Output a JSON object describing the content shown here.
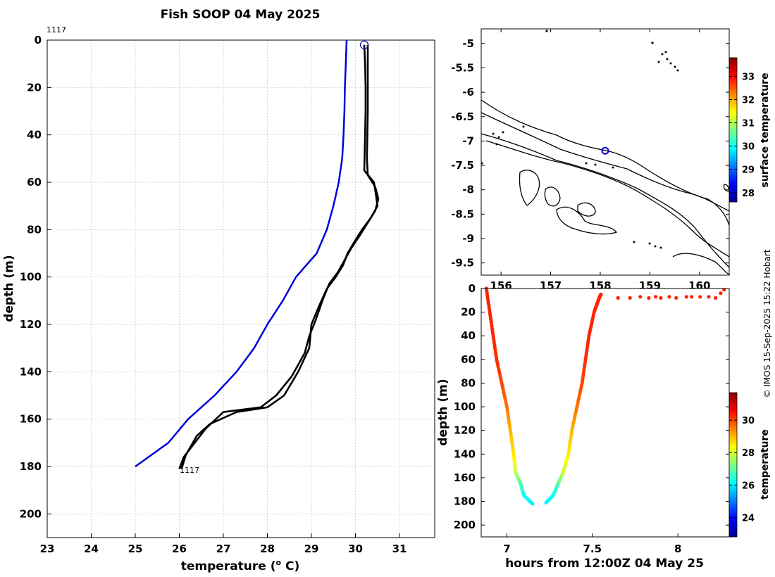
{
  "chart_data": [
    {
      "id": "profile",
      "type": "line",
      "title": "Fish SOOP 04 May 2025",
      "xlabel": "temperature (",
      "xlabel_sup": "o",
      "xlabel_tail": " C)",
      "ylabel": "depth (m)",
      "xlim": [
        23,
        31.8
      ],
      "ylim": [
        0,
        210
      ],
      "xticks": [
        23,
        24,
        25,
        26,
        27,
        28,
        29,
        30,
        31
      ],
      "yticks": [
        0,
        20,
        40,
        60,
        80,
        100,
        120,
        140,
        160,
        180,
        200
      ],
      "grid": true,
      "annotations": {
        "top_id": "1117",
        "bottom_id": "1117"
      },
      "marker": {
        "temperature": 30.2,
        "depth": 2,
        "color": "#0000cc"
      },
      "series": [
        {
          "name": "climatology",
          "color": "#0000dd",
          "points": [
            [
              29.8,
              0
            ],
            [
              29.78,
              10
            ],
            [
              29.76,
              20
            ],
            [
              29.75,
              30
            ],
            [
              29.73,
              40
            ],
            [
              29.7,
              50
            ],
            [
              29.62,
              60
            ],
            [
              29.5,
              70
            ],
            [
              29.35,
              80
            ],
            [
              29.12,
              90
            ],
            [
              28.65,
              100
            ],
            [
              28.35,
              110
            ],
            [
              28.0,
              120
            ],
            [
              27.7,
              130
            ],
            [
              27.3,
              140
            ],
            [
              26.8,
              150
            ],
            [
              26.2,
              160
            ],
            [
              25.75,
              170
            ],
            [
              25.0,
              180
            ]
          ]
        },
        {
          "name": "down cast",
          "color": "#000000",
          "points": [
            [
              30.2,
              2
            ],
            [
              30.22,
              10
            ],
            [
              30.23,
              20
            ],
            [
              30.23,
              30
            ],
            [
              30.22,
              40
            ],
            [
              30.2,
              55
            ],
            [
              30.42,
              60
            ],
            [
              30.47,
              66
            ],
            [
              30.5,
              70
            ],
            [
              30.35,
              75
            ],
            [
              30.15,
              80
            ],
            [
              29.98,
              85
            ],
            [
              29.82,
              90
            ],
            [
              29.72,
              95
            ],
            [
              29.55,
              100
            ],
            [
              29.35,
              105
            ],
            [
              29.18,
              112
            ],
            [
              29.0,
              120
            ],
            [
              28.95,
              130
            ],
            [
              28.7,
              140
            ],
            [
              28.38,
              150
            ],
            [
              28.0,
              155
            ],
            [
              27.3,
              157
            ],
            [
              26.7,
              162
            ],
            [
              26.4,
              167
            ],
            [
              26.15,
              175
            ],
            [
              26.05,
              181
            ]
          ]
        },
        {
          "name": "up cast",
          "color": "#000000",
          "points": [
            [
              30.28,
              2
            ],
            [
              30.28,
              10
            ],
            [
              30.28,
              20
            ],
            [
              30.28,
              30
            ],
            [
              30.27,
              40
            ],
            [
              30.26,
              50
            ],
            [
              30.28,
              57
            ],
            [
              30.45,
              62
            ],
            [
              30.52,
              67
            ],
            [
              30.45,
              72
            ],
            [
              30.25,
              78
            ],
            [
              30.08,
              83
            ],
            [
              29.9,
              88
            ],
            [
              29.75,
              93
            ],
            [
              29.6,
              98
            ],
            [
              29.4,
              103
            ],
            [
              29.25,
              110
            ],
            [
              29.1,
              118
            ],
            [
              28.95,
              125
            ],
            [
              28.85,
              132
            ],
            [
              28.55,
              142
            ],
            [
              28.2,
              150
            ],
            [
              27.85,
              155
            ],
            [
              27.0,
              157
            ],
            [
              26.6,
              164
            ],
            [
              26.35,
              170
            ],
            [
              26.1,
              176
            ],
            [
              26.0,
              181
            ]
          ]
        }
      ]
    },
    {
      "id": "map",
      "type": "scatter",
      "xlim": [
        155.6,
        160.6
      ],
      "ylim": [
        -9.75,
        -4.7
      ],
      "xticks": [
        156,
        157,
        158,
        159,
        160
      ],
      "yticks": [
        -5,
        -5.5,
        -6,
        -6.5,
        -7,
        -7.5,
        -8,
        -8.5,
        -9,
        -9.5
      ],
      "xtick_labels": [
        "156",
        "157",
        "158",
        "159",
        "160"
      ],
      "ytick_labels": [
        "-5",
        "-5.5",
        "-6",
        "-6.5",
        "-7",
        "-7.5",
        "-8",
        "-8.5",
        "-9",
        "-9.5"
      ],
      "marker": {
        "lon": 158.1,
        "lat": -7.2,
        "color": "#0000cc"
      },
      "colorbar": {
        "label": "surface temperature",
        "min": 27.6,
        "max": 33.8,
        "ticks": [
          28,
          29,
          30,
          31,
          32,
          33
        ]
      }
    },
    {
      "id": "track",
      "type": "scatter",
      "xlabel": "hours from 12:00Z 04 May 25",
      "ylabel": "depth (m)",
      "xlim": [
        6.85,
        8.3
      ],
      "ylim": [
        0,
        210
      ],
      "xticks": [
        7,
        7.5,
        8
      ],
      "xtick_labels": [
        "7",
        "7.5",
        "8"
      ],
      "yticks": [
        0,
        20,
        40,
        60,
        80,
        100,
        120,
        140,
        160,
        180,
        200
      ],
      "colorbar": {
        "label": "temperature",
        "min": 22.8,
        "max": 31.7,
        "ticks": [
          24,
          26,
          28,
          30
        ]
      },
      "descent": [
        [
          6.88,
          0,
          30.3
        ],
        [
          6.9,
          20,
          30.3
        ],
        [
          6.92,
          40,
          30.25
        ],
        [
          6.94,
          60,
          30.2
        ],
        [
          6.97,
          80,
          30.0
        ],
        [
          7.0,
          100,
          29.6
        ],
        [
          7.02,
          120,
          29.0
        ],
        [
          7.04,
          140,
          28.6
        ],
        [
          7.05,
          155,
          27.9
        ],
        [
          7.08,
          165,
          26.8
        ],
        [
          7.1,
          175,
          26.3
        ],
        [
          7.15,
          182,
          26.0
        ]
      ],
      "ascent": [
        [
          7.23,
          181,
          26.0
        ],
        [
          7.27,
          175,
          26.2
        ],
        [
          7.3,
          165,
          26.8
        ],
        [
          7.33,
          155,
          27.9
        ],
        [
          7.36,
          140,
          28.5
        ],
        [
          7.38,
          120,
          29.0
        ],
        [
          7.41,
          100,
          29.6
        ],
        [
          7.44,
          80,
          30.0
        ],
        [
          7.46,
          60,
          30.2
        ],
        [
          7.48,
          40,
          30.3
        ],
        [
          7.51,
          20,
          30.3
        ],
        [
          7.54,
          8,
          30.3
        ],
        [
          7.55,
          5,
          30.3
        ]
      ],
      "surface": [
        [
          7.65,
          8,
          30.3
        ],
        [
          7.72,
          8,
          30.3
        ],
        [
          7.78,
          7,
          30.3
        ],
        [
          7.83,
          8,
          30.3
        ],
        [
          7.87,
          7,
          30.3
        ],
        [
          7.9,
          8,
          30.3
        ],
        [
          7.95,
          7,
          30.3
        ],
        [
          7.99,
          8,
          30.3
        ],
        [
          8.05,
          7,
          30.3
        ],
        [
          8.08,
          7,
          30.3
        ],
        [
          8.13,
          7,
          30.3
        ],
        [
          8.18,
          7,
          30.3
        ],
        [
          8.22,
          8,
          30.3
        ],
        [
          8.25,
          4,
          30.3
        ],
        [
          8.27,
          1,
          30.3
        ]
      ]
    }
  ],
  "credit": "© IMOS 15-Sep-2025 15:22 Hobart"
}
